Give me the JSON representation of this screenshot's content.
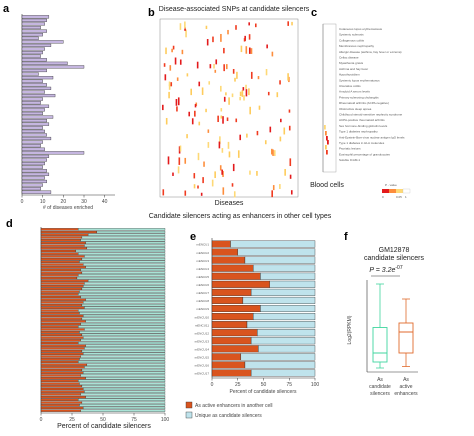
{
  "panel_labels": {
    "a": "a",
    "b": "b",
    "c": "c",
    "d": "d",
    "e": "e",
    "f": "f"
  },
  "titles": {
    "top": "Disease-associated SNPs at candidate silencers",
    "middle": "Candidate silencers acting as enhancers in other cell types"
  },
  "legend_e": {
    "active": "As active enhancers in another cell",
    "unique": "Unique as candidate silencers"
  },
  "colors": {
    "purple": "#c5b6e0",
    "orange": "#d9541e",
    "teal": "#a9e3d6",
    "lightblue": "#bfe3ec",
    "red": "#e31a1c",
    "yellow": "#fed976",
    "green": "#40d69f",
    "boxorange": "#e06a2c"
  },
  "chart_data": [
    {
      "panel": "a",
      "type": "bar",
      "orientation": "horizontal",
      "xlabel": "# of diseases enriched",
      "xticks": [
        "0",
        "10",
        "20",
        "30",
        "40"
      ],
      "xlim": [
        0,
        45
      ],
      "n_samples": 50,
      "values": [
        13,
        12,
        11,
        9,
        12,
        10,
        8,
        20,
        14,
        11,
        10,
        9,
        12,
        22,
        30,
        12,
        8,
        15,
        10,
        12,
        14,
        11,
        16,
        10,
        9,
        13,
        11,
        10,
        15,
        12,
        13,
        10,
        11,
        12,
        14,
        10,
        9,
        11,
        30,
        13,
        12,
        11,
        10,
        12,
        13,
        11,
        12,
        10,
        9,
        14
      ]
    },
    {
      "panel": "b",
      "type": "heatmap",
      "xlabel": "Diseases"
    },
    {
      "panel": "c",
      "type": "heatmap",
      "xlabel": "Blood cells",
      "legend_title": "P - value",
      "legend_ticks": [
        "0",
        "0.05"
      ],
      "legend_tick_last": "1",
      "row_labels": [
        "Cutaneous lupus erythematosus",
        "Systemic sclerosis",
        "Collagenous colitis",
        "Membranous nephropathy",
        "Allergic disease (asthma, hay fever or eczema)",
        "Celiac disease",
        "Myasthenia gravis",
        "Asthma and hay fever",
        "Hypothyroidism",
        "Systemic lupus erythematosus",
        "Ulcerative colitis",
        "Amyloid A serum levels",
        "Primary sclerosing cholangitis",
        "Rheumatoid arthritis (ACPA-negative)",
        "Obstructive sleep apnea",
        "Childhood steroid-sensitive nephrotic syndrome",
        "ACPA-positive rheumatoid arthritis",
        "Sex hormone-binding globulin levels",
        "Type 1 diabetes nephropathy",
        "Anti-Epstein-Barr virus nuclear antigen IgG levels",
        "Type 1 diabetes in HLA molecules",
        "Psoriatic lesions",
        "Eosinophil percentage of granulocytes",
        "Soluble ICAM-1"
      ]
    },
    {
      "panel": "d",
      "type": "bar",
      "stacked": true,
      "xlabel": "Percent of candidate silencers",
      "xticks": [
        "0",
        "25",
        "50",
        "75",
        "100"
      ],
      "xlim": [
        0,
        100
      ],
      "series": [
        {
          "name": "As active enhancers in another cell",
          "values": [
            30,
            45,
            38,
            33,
            32,
            36,
            35,
            37,
            28,
            30,
            35,
            33,
            31,
            34,
            36,
            32,
            33,
            30,
            29,
            38,
            35,
            34,
            33,
            31,
            30,
            32,
            36,
            34,
            33,
            35,
            30,
            31,
            34,
            33,
            36,
            32,
            30,
            35,
            31,
            33,
            34,
            32,
            30,
            36,
            35,
            33,
            34,
            32,
            31,
            30,
            37,
            35,
            33,
            34,
            32,
            36,
            30,
            31,
            33,
            34,
            35,
            32,
            36,
            30,
            33,
            31,
            34,
            32
          ]
        }
      ]
    },
    {
      "panel": "e",
      "type": "bar",
      "stacked": true,
      "xlabel": "Percent of candidate silencers",
      "xticks": [
        "0",
        "25",
        "50",
        "75",
        "100"
      ],
      "xlim": [
        0,
        100
      ],
      "categories": [
        "mENCU1",
        "mENCU2",
        "mENCU3",
        "mENCU4",
        "mENCU5",
        "mENCU6",
        "mENCU7",
        "mENCU8",
        "mENCU9",
        "mENCU10",
        "mENCU11",
        "mENCU12",
        "mENCU13",
        "mENCU14",
        "mENCU15",
        "mENCU16",
        "mENCU17"
      ],
      "series": [
        {
          "name": "As active enhancers in another cell",
          "values": [
            18,
            25,
            32,
            40,
            47,
            56,
            38,
            30,
            47,
            40,
            34,
            44,
            38,
            45,
            28,
            32,
            38
          ]
        },
        {
          "name": "Unique as candidate silencers",
          "values": [
            82,
            75,
            68,
            60,
            53,
            44,
            62,
            70,
            53,
            60,
            66,
            56,
            62,
            55,
            72,
            68,
            62
          ]
        }
      ]
    },
    {
      "panel": "f",
      "type": "box",
      "title": "GM12878 candidate silencers",
      "ylabel": "Log2(RPKM)",
      "categories": [
        "As candidate silencers",
        "As active enhancers"
      ],
      "box_data": [
        {
          "name": "As candidate silencers",
          "whisker_low": 0.2,
          "q1": 0.6,
          "median": 1.2,
          "q3": 2.9,
          "whisker_high": 5.8
        },
        {
          "name": "As active enhancers",
          "whisker_low": 0.3,
          "q1": 1.2,
          "median": 2.6,
          "q3": 3.2,
          "whisker_high": 4.8
        }
      ]
    }
  ],
  "texts_f": {
    "title1": "GM12878",
    "title2": "candidate silencers",
    "pvalue_prefix": "P = 3.2e",
    "pvalue_exp": "-07",
    "cat1_l1": "As",
    "cat1_l2": "candidate",
    "cat1_l3": "silencers",
    "cat2_l1": "As",
    "cat2_l2": "active",
    "cat2_l3": "enhancers",
    "ylabel": "Log2(RPKM)"
  }
}
